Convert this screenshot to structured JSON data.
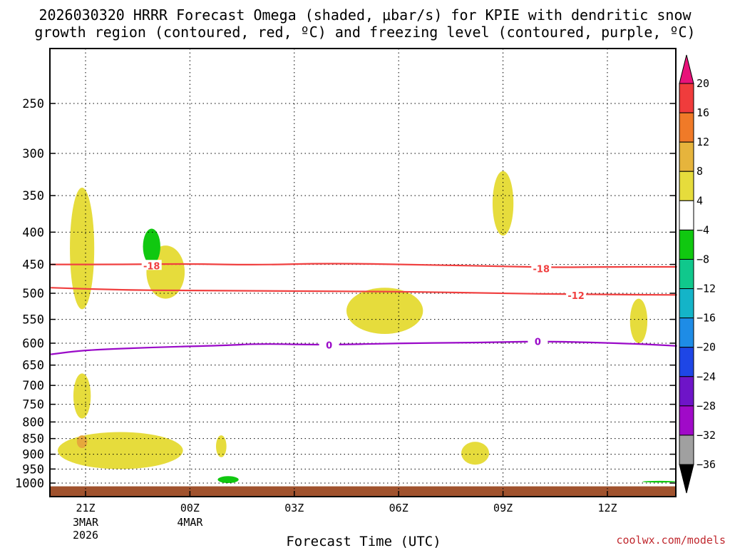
{
  "chart_data": {
    "type": "contour",
    "title_line1": "2026030320 HRRR Forecast Omega (shaded, μbar/s) for KPIE with dendritic snow",
    "title_line2": "growth region (contoured, red, ºC) and freezing level (contoured, purple, ºC)",
    "xlabel": "Forecast Time (UTC)",
    "x_range_hours": [
      -1,
      17
    ],
    "x_ticks": [
      {
        "hour": 0,
        "label": "21Z",
        "sub1": "3MAR",
        "sub2": "2026"
      },
      {
        "hour": 3,
        "label": "00Z",
        "sub1": "4MAR",
        "sub2": ""
      },
      {
        "hour": 6,
        "label": "03Z",
        "sub1": "",
        "sub2": ""
      },
      {
        "hour": 9,
        "label": "06Z",
        "sub1": "",
        "sub2": ""
      },
      {
        "hour": 12,
        "label": "09Z",
        "sub1": "",
        "sub2": ""
      },
      {
        "hour": 15,
        "label": "12Z",
        "sub1": "",
        "sub2": ""
      }
    ],
    "y_axis": "pressure (hPa), log scale, inverted",
    "y_range": [
      1050,
      200
    ],
    "y_ticks": [
      250,
      300,
      350,
      400,
      450,
      500,
      550,
      600,
      650,
      700,
      750,
      800,
      850,
      900,
      950,
      1000
    ],
    "colorbar": {
      "levels": [
        "20",
        "16",
        "12",
        "8",
        "4",
        "−4",
        "−8",
        "−12",
        "−16",
        "−20",
        "−24",
        "−28",
        "−32",
        "−36"
      ],
      "colors": [
        "#e8127a",
        "#f03c3c",
        "#f07a28",
        "#e6b43c",
        "#e6dc3c",
        "#ffffff",
        "#10c810",
        "#10c88c",
        "#14b4c8",
        "#1e8ce6",
        "#1e46e6",
        "#6e14c8",
        "#a00ac8",
        "#a0a0a0",
        "#000000"
      ]
    },
    "contours": [
      {
        "name": "dgz-minus18",
        "color": "#f04040",
        "label": "-18",
        "points": [
          [
            -1,
            450
          ],
          [
            1,
            450
          ],
          [
            3,
            449
          ],
          [
            5,
            451
          ],
          [
            7,
            448
          ],
          [
            10,
            451
          ],
          [
            12,
            453
          ],
          [
            13.5,
            455
          ],
          [
            15,
            454
          ],
          [
            17,
            454
          ]
        ],
        "label_at": [
          [
            1.9,
            452
          ],
          [
            13.1,
            457
          ]
        ]
      },
      {
        "name": "dgz-minus12",
        "color": "#f04040",
        "label": "-12",
        "points": [
          [
            -1,
            490
          ],
          [
            1,
            494
          ],
          [
            3,
            495
          ],
          [
            6,
            496
          ],
          [
            9,
            497
          ],
          [
            12,
            500
          ],
          [
            14,
            502
          ],
          [
            17,
            503
          ]
        ],
        "label_at": [
          [
            14.1,
            504
          ]
        ]
      },
      {
        "name": "freezing-level-0",
        "color": "#9a0ac8",
        "label": "0",
        "points": [
          [
            -1,
            625
          ],
          [
            0,
            615
          ],
          [
            2,
            609
          ],
          [
            4,
            605
          ],
          [
            5,
            601
          ],
          [
            7,
            604
          ],
          [
            9,
            600
          ],
          [
            11,
            599
          ],
          [
            13,
            596
          ],
          [
            14.5,
            598
          ],
          [
            16,
            602
          ],
          [
            17,
            606
          ]
        ],
        "label_at": [
          [
            7.0,
            604
          ],
          [
            13.0,
            596
          ]
        ]
      }
    ],
    "shaded_regions": [
      {
        "name": "omega-pos-a",
        "value": 4,
        "center": [
          -0.1,
          430
        ],
        "rx_hours": 0.35,
        "ry_hpa": [
          340,
          530
        ]
      },
      {
        "name": "omega-pos-b",
        "value": 4,
        "center": [
          2.3,
          475
        ],
        "rx_hours": 0.55,
        "ry_hpa": [
          420,
          510
        ]
      },
      {
        "name": "omega-pos-c",
        "value": 4,
        "center": [
          8.6,
          535
        ],
        "rx_hours": 1.1,
        "ry_hpa": [
          490,
          580
        ]
      },
      {
        "name": "omega-pos-d",
        "value": 4,
        "center": [
          12.0,
          360
        ],
        "rx_hours": 0.3,
        "ry_hpa": [
          320,
          405
        ]
      },
      {
        "name": "omega-pos-e",
        "value": 4,
        "center": [
          15.9,
          570
        ],
        "rx_hours": 0.25,
        "ry_hpa": [
          510,
          600
        ]
      },
      {
        "name": "omega-pos-f",
        "value": 4,
        "center": [
          -0.1,
          730
        ],
        "rx_hours": 0.25,
        "ry_hpa": [
          670,
          790
        ]
      },
      {
        "name": "omega-pos-g",
        "value": 4,
        "center": [
          1.0,
          880
        ],
        "rx_hours": 1.8,
        "ry_hpa": [
          830,
          950
        ]
      },
      {
        "name": "omega-pos-h",
        "value": 4,
        "center": [
          3.9,
          880
        ],
        "rx_hours": 0.15,
        "ry_hpa": [
          840,
          910
        ]
      },
      {
        "name": "omega-pos-i",
        "value": 4,
        "center": [
          11.2,
          900
        ],
        "rx_hours": 0.4,
        "ry_hpa": [
          860,
          935
        ]
      },
      {
        "name": "omega-pos-j",
        "value": 8,
        "center": [
          -0.1,
          860
        ],
        "rx_hours": 0.15,
        "ry_hpa": [
          840,
          880
        ]
      },
      {
        "name": "omega-neg-a",
        "value": -4,
        "center": [
          1.9,
          420
        ],
        "rx_hours": 0.25,
        "ry_hpa": [
          395,
          450
        ]
      },
      {
        "name": "omega-neg-b",
        "value": -4,
        "center": [
          4.1,
          985
        ],
        "rx_hours": 0.3,
        "ry_hpa": [
          975,
          1000
        ]
      },
      {
        "name": "omega-neg-c",
        "value": -4,
        "center": [
          16.5,
          995
        ],
        "rx_hours": 0.5,
        "ry_hpa": [
          992,
          998
        ]
      }
    ],
    "ground": {
      "color": "#a0522d",
      "pressure_top": 1012
    }
  },
  "credit": "coolwx.com/models"
}
